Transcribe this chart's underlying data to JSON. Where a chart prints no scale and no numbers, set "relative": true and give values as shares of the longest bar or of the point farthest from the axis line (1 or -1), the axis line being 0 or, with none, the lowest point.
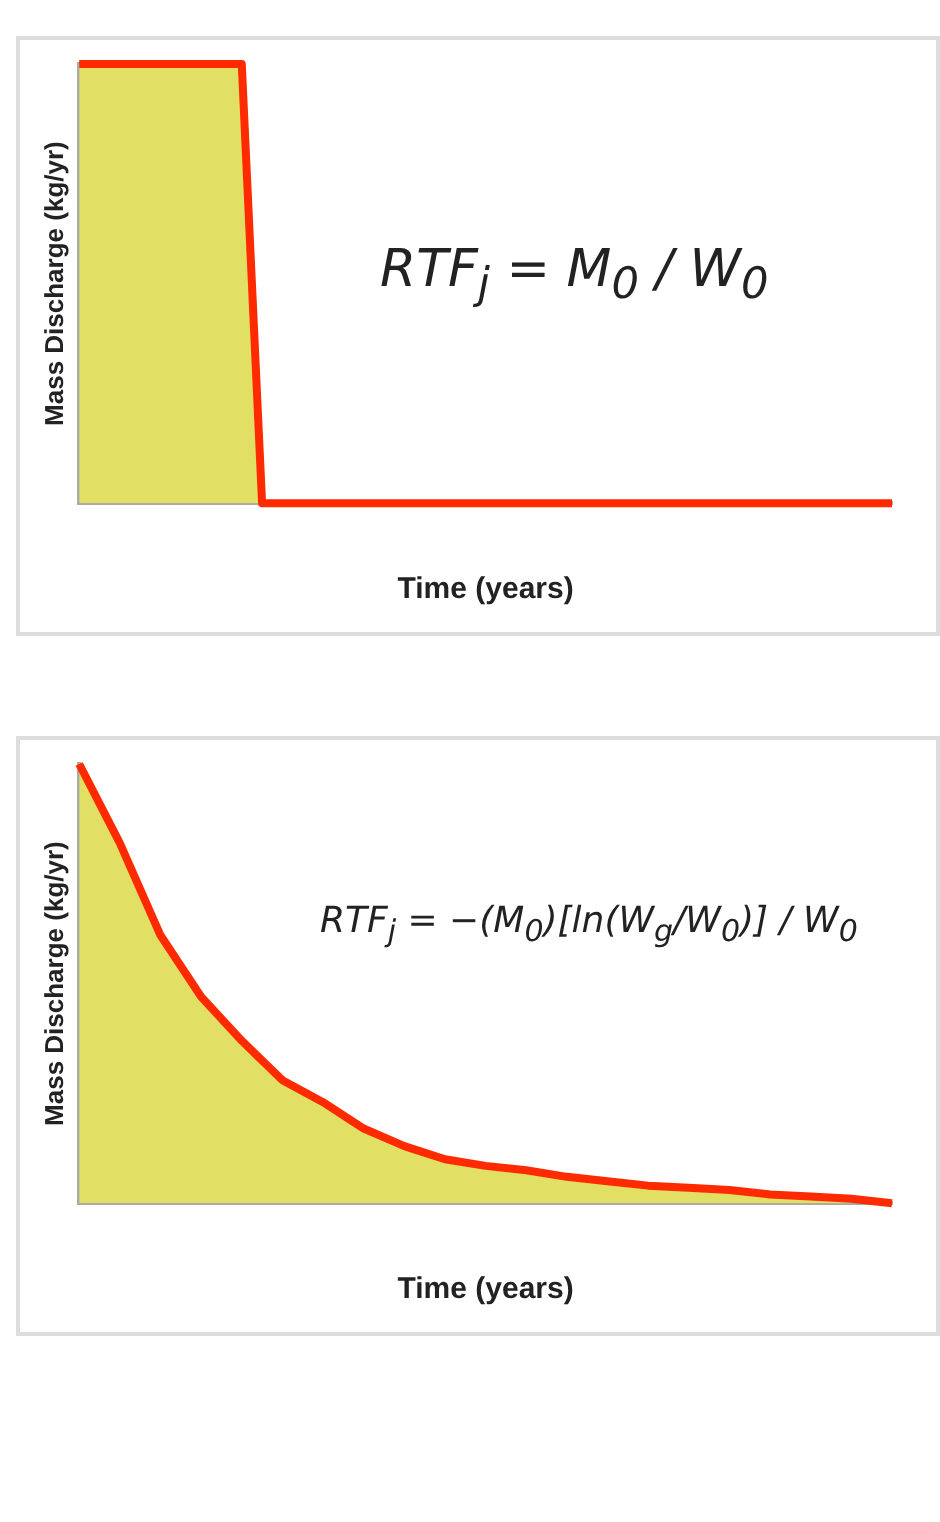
{
  "chart_data": [
    {
      "type": "area",
      "relative": true,
      "xlabel": "Time (years)",
      "ylabel": "Mass Discharge (kg/yr)",
      "categories": [
        null,
        null,
        null,
        null,
        null,
        null,
        null,
        null,
        null,
        null,
        null,
        null,
        null,
        null,
        null,
        null,
        null,
        null,
        null,
        null,
        null,
        null,
        null,
        null,
        null,
        null,
        null,
        null,
        null,
        null,
        null,
        null,
        null,
        null,
        null,
        null,
        null,
        null,
        null,
        null,
        null
      ],
      "series": [
        {
          "color": "#e2e064",
          "values": [
            1,
            1,
            1,
            1,
            1,
            1,
            1,
            1,
            1,
            0,
            0,
            0,
            0,
            0,
            0,
            0,
            0,
            0,
            0,
            0,
            0,
            0,
            0,
            0,
            0,
            0,
            0,
            0,
            0,
            0,
            0,
            0,
            0,
            0,
            0,
            0,
            0,
            0,
            0,
            0,
            0
          ]
        }
      ],
      "annotations": [
        "RTF$_{j}$ = M$_{0}$ / W$_{0}$"
      ],
      "grid": false,
      "legend": false
    },
    {
      "type": "area",
      "relative": true,
      "xlabel": "Time (years)",
      "ylabel": "Mass Discharge (kg/yr)",
      "categories": [
        null,
        null,
        null,
        null,
        null,
        null,
        null,
        null,
        null,
        null,
        null,
        null,
        null,
        null,
        null,
        null,
        null,
        null,
        null,
        null,
        null
      ],
      "series": [
        {
          "color": "#e2e064",
          "values": [
            1,
            0.82,
            0.61,
            0.47,
            0.37,
            0.28,
            0.23,
            0.17,
            0.13,
            0.1,
            0.085,
            0.075,
            0.06,
            0.05,
            0.04,
            0.035,
            0.03,
            0.02,
            0.015,
            0.01,
            0
          ]
        }
      ],
      "annotations": [
        "RTF$_{j}$ = −(M$_{0}$)[ln(W$_{g}$/W$_{0}$)] / W$_{0}$"
      ],
      "grid": false,
      "legend": false
    }
  ]
}
